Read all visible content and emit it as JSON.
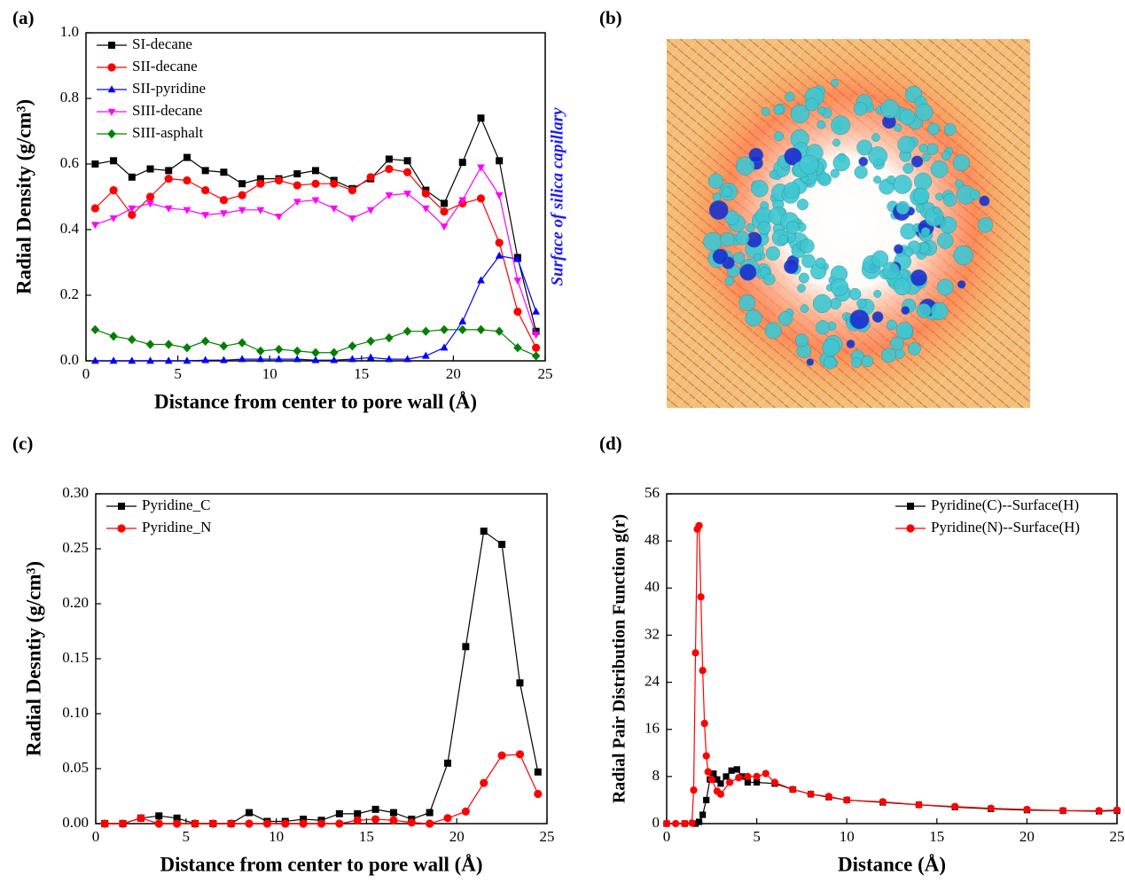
{
  "chart_data": [
    {
      "type": "line",
      "panel_label": "(a)",
      "x_label": "Distance from center to pore wall (Å)",
      "y_label": "Radial Density (g/cm³)",
      "annotation": "Surface of silica capillary",
      "legend": "upper left",
      "xlim": [
        0,
        25
      ],
      "xticks": [
        0,
        5,
        10,
        15,
        20,
        25
      ],
      "ylim": [
        0,
        1.0
      ],
      "yticks": [
        {
          "value": 0,
          "label": "0.0"
        },
        0.2,
        0.4,
        0.6,
        0.8,
        {
          "value": 1.0,
          "label": "1.0"
        }
      ],
      "x": [
        0.5,
        1.5,
        2.5,
        3.5,
        4.5,
        5.5,
        6.5,
        7.5,
        8.5,
        9.5,
        10.5,
        11.5,
        12.5,
        13.5,
        14.5,
        15.5,
        16.5,
        17.5,
        18.5,
        19.5,
        20.5,
        21.5,
        22.5,
        23.5,
        24.5
      ],
      "series": [
        {
          "name": "SI-decane",
          "color": "#000000",
          "marker": "square",
          "values": [
            0.6,
            0.61,
            0.56,
            0.585,
            0.58,
            0.62,
            0.58,
            0.575,
            0.54,
            0.555,
            0.555,
            0.57,
            0.58,
            0.55,
            0.525,
            0.555,
            0.615,
            0.61,
            0.52,
            0.48,
            0.605,
            0.74,
            0.61,
            0.315,
            0.09
          ]
        },
        {
          "name": "SII-decane",
          "color": "#ff0000",
          "marker": "circle",
          "values": [
            0.465,
            0.52,
            0.445,
            0.5,
            0.555,
            0.55,
            0.52,
            0.49,
            0.505,
            0.54,
            0.55,
            0.535,
            0.54,
            0.54,
            0.52,
            0.56,
            0.585,
            0.575,
            0.51,
            0.455,
            0.48,
            0.495,
            0.36,
            0.15,
            0.04
          ]
        },
        {
          "name": "SII-pyridine",
          "color": "#0000ff",
          "marker": "triangle-up",
          "values": [
            0,
            0,
            0,
            0,
            0,
            0,
            0.002,
            0.002,
            0.005,
            0.005,
            0.005,
            0.005,
            0.002,
            0.002,
            0.005,
            0.01,
            0.005,
            0.005,
            0.015,
            0.04,
            0.12,
            0.245,
            0.32,
            0.31,
            0.15
          ]
        },
        {
          "name": "SIII-decane",
          "color": "#ff00ff",
          "marker": "triangle-down",
          "values": [
            0.415,
            0.435,
            0.465,
            0.48,
            0.465,
            0.46,
            0.445,
            0.45,
            0.46,
            0.46,
            0.44,
            0.485,
            0.49,
            0.465,
            0.435,
            0.46,
            0.505,
            0.51,
            0.465,
            0.41,
            0.49,
            0.59,
            0.505,
            0.245,
            0.08
          ]
        },
        {
          "name": "SIII-asphalt",
          "color": "#008000",
          "marker": "diamond",
          "values": [
            0.095,
            0.075,
            0.065,
            0.05,
            0.05,
            0.04,
            0.06,
            0.045,
            0.055,
            0.03,
            0.035,
            0.03,
            0.025,
            0.025,
            0.045,
            0.06,
            0.07,
            0.09,
            0.09,
            0.095,
            0.095,
            0.095,
            0.09,
            0.04,
            0.015
          ]
        }
      ]
    },
    {
      "type": "line",
      "panel_label": "(c)",
      "x_label": "Distance from center to pore wall (Å)",
      "y_label": "Radial Desntiy (g/cm³)",
      "legend": "upper left",
      "xlim": [
        0,
        25
      ],
      "xticks": [
        0,
        5,
        10,
        15,
        20,
        25
      ],
      "ylim": [
        0,
        0.3
      ],
      "yticks": [
        {
          "value": 0,
          "label": "0.00"
        },
        0.05,
        {
          "value": 0.1,
          "label": "0.10"
        },
        0.15,
        {
          "value": 0.2,
          "label": "0.20"
        },
        0.25,
        {
          "value": 0.3,
          "label": "0.30"
        }
      ],
      "x": [
        0.5,
        1.5,
        2.5,
        3.5,
        4.5,
        5.5,
        6.5,
        7.5,
        8.5,
        9.5,
        10.5,
        11.5,
        12.5,
        13.5,
        14.5,
        15.5,
        16.5,
        17.5,
        18.5,
        19.5,
        20.5,
        21.5,
        22.5,
        23.5,
        24.5
      ],
      "series": [
        {
          "name": "Pyridine_C",
          "color": "#000000",
          "marker": "square",
          "values": [
            0,
            0,
            0.005,
            0.007,
            0.005,
            0,
            0,
            0,
            0.01,
            0.002,
            0.002,
            0.004,
            0.003,
            0.009,
            0.009,
            0.013,
            0.01,
            0.004,
            0.01,
            0.055,
            0.161,
            0.266,
            0.254,
            0.128,
            0.047
          ]
        },
        {
          "name": "Pyridine_N",
          "color": "#ff0000",
          "marker": "circle",
          "values": [
            0,
            0,
            0.005,
            0,
            0,
            0,
            0,
            0,
            0,
            0,
            0,
            0,
            0,
            0,
            0.003,
            0.004,
            0.003,
            0.001,
            0,
            0.005,
            0.011,
            0.037,
            0.062,
            0.063,
            0.027
          ]
        }
      ]
    },
    {
      "type": "xyline",
      "panel_label": "(d)",
      "x_label": "Distance (Å)",
      "y_label": "Radial Pair Distribution Function g(r)",
      "legend": "upper right",
      "xlim": [
        0,
        25
      ],
      "xticks": [
        0,
        5,
        10,
        15,
        20,
        25
      ],
      "ylim": [
        0,
        56
      ],
      "yticks": [
        0,
        8,
        16,
        24,
        32,
        40,
        48,
        56
      ],
      "series": [
        {
          "name": "Pyridine(C)--Surface(H)",
          "color": "#000000",
          "marker": "square",
          "x": [
            0,
            1,
            1.6,
            1.8,
            2.0,
            2.2,
            2.4,
            2.6,
            2.8,
            3.0,
            3.3,
            3.6,
            3.9,
            4.2,
            4.5,
            5,
            6,
            7,
            8,
            9,
            10,
            12,
            14,
            16,
            18,
            20,
            22,
            24,
            25
          ],
          "values": [
            0,
            0,
            0,
            0.3,
            1.5,
            4,
            7.5,
            8.5,
            7.5,
            6.8,
            8,
            9,
            9.2,
            8,
            7,
            7,
            6.8,
            5.8,
            5,
            4.5,
            4,
            3.6,
            3.2,
            2.8,
            2.5,
            2.3,
            2.2,
            2.1,
            2.2
          ]
        },
        {
          "name": "Pyridine(N)--Surface(H)",
          "color": "#ff0000",
          "marker": "circle",
          "x": [
            0,
            0.5,
            1.0,
            1.4,
            1.5,
            1.6,
            1.7,
            1.8,
            1.9,
            2.0,
            2.1,
            2.2,
            2.3,
            2.5,
            2.8,
            3.0,
            3.5,
            4.0,
            4.5,
            5.0,
            5.5,
            6.0,
            7,
            8,
            9,
            10,
            12,
            14,
            16,
            18,
            20,
            22,
            24,
            25
          ],
          "values": [
            0,
            0,
            0,
            0.1,
            5.7,
            29,
            50,
            50.6,
            38.5,
            26,
            17,
            11.5,
            8.8,
            7.5,
            5.5,
            5,
            7,
            7.8,
            8,
            8,
            8.5,
            7,
            5.8,
            5,
            4.6,
            4,
            3.7,
            3.2,
            2.9,
            2.6,
            2.4,
            2.2,
            2.2,
            2.3
          ]
        }
      ]
    }
  ],
  "image_panel": {
    "panel_label": "(b)"
  }
}
